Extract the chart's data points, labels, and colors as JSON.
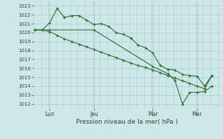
{
  "xlabel": "Pression niveau de la mer( hPa )",
  "ylim": [
    1011.5,
    1023.5
  ],
  "yticks": [
    1012,
    1013,
    1014,
    1015,
    1016,
    1017,
    1018,
    1019,
    1020,
    1021,
    1022,
    1023
  ],
  "bg_color": "#cce8e8",
  "grid_color": "#aacccc",
  "line_color": "#2d6a2d",
  "tick_color": "#334433",
  "xlim": [
    -0.1,
    12.6
  ],
  "vline_positions": [
    1.0,
    4.0,
    8.0,
    11.0
  ],
  "vline_labels": [
    "Lun",
    "Jeu",
    "Mar",
    "Mer"
  ],
  "line1_x": [
    0.0,
    0.5,
    1.0,
    1.5,
    2.0,
    2.5,
    3.0,
    3.5,
    4.0,
    4.5,
    5.0,
    5.5,
    6.0,
    6.5,
    7.0,
    7.5,
    8.0,
    8.5,
    9.0,
    9.5,
    10.0,
    10.5,
    11.0,
    11.5,
    12.0
  ],
  "line1_y": [
    1020.3,
    1020.3,
    1021.1,
    1022.7,
    1021.7,
    1021.9,
    1021.9,
    1021.4,
    1020.9,
    1021.0,
    1020.7,
    1020.0,
    1019.8,
    1019.4,
    1018.6,
    1018.3,
    1017.7,
    1016.3,
    1015.9,
    1015.8,
    1015.3,
    1015.2,
    1015.1,
    1014.0,
    1015.2
  ],
  "line2_x": [
    0.0,
    0.5,
    1.0,
    1.5,
    2.0,
    2.5,
    3.0,
    3.5,
    4.0,
    4.5,
    5.0,
    5.5,
    6.0,
    6.5,
    7.0,
    7.5,
    8.0,
    8.5,
    9.0,
    9.5,
    10.0,
    10.5,
    11.0,
    11.5,
    12.0
  ],
  "line2_y": [
    1020.3,
    1020.3,
    1020.1,
    1019.7,
    1019.3,
    1019.0,
    1018.7,
    1018.4,
    1018.1,
    1017.8,
    1017.5,
    1017.2,
    1016.9,
    1016.6,
    1016.3,
    1016.1,
    1015.8,
    1015.5,
    1015.2,
    1014.9,
    1014.6,
    1014.3,
    1014.0,
    1013.7,
    1015.2
  ],
  "line3_x": [
    0.0,
    1.0,
    4.0,
    8.0,
    9.0,
    9.5,
    10.0,
    10.5,
    11.0,
    11.5,
    12.0
  ],
  "line3_y": [
    1020.3,
    1020.3,
    1020.3,
    1016.2,
    1015.4,
    1014.6,
    1012.0,
    1013.3,
    1013.3,
    1013.4,
    1014.0
  ]
}
